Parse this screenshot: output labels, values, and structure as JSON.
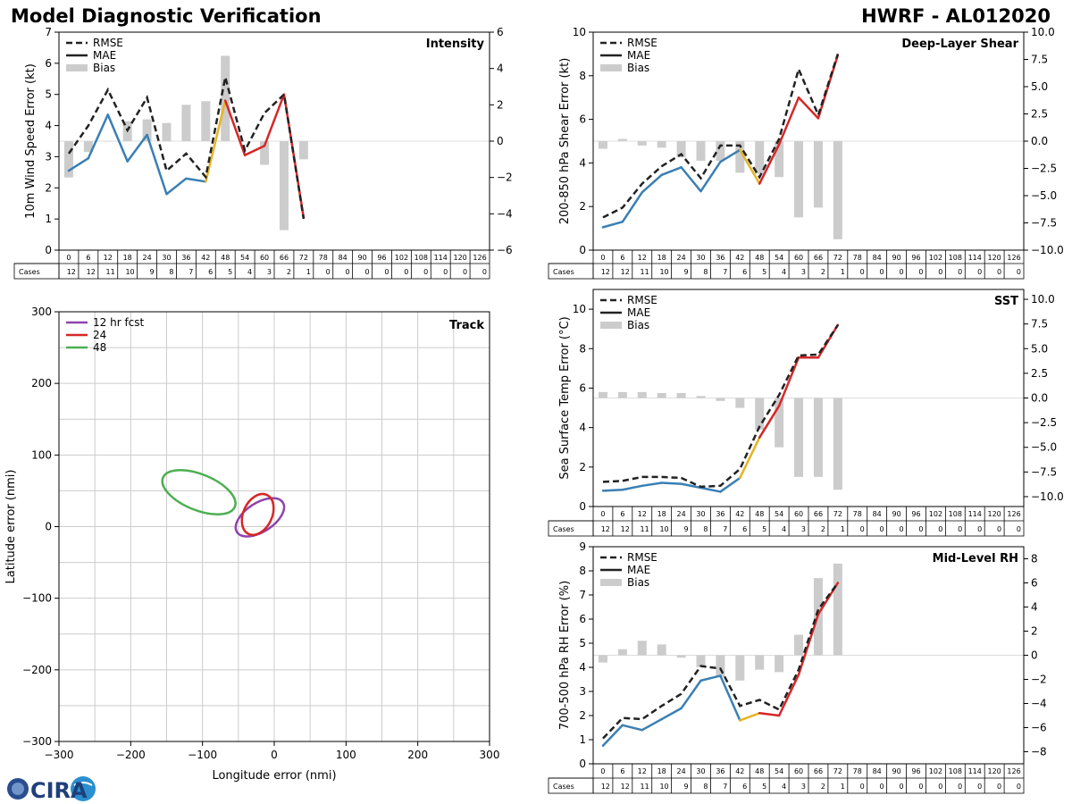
{
  "header": {
    "title": "Model Diagnostic Verification",
    "storm": "HWRF - AL012020"
  },
  "logo": {
    "text": "CIRA"
  },
  "colors": {
    "rmse": "#222222",
    "mae_early": "#3a7fb4",
    "mae_mid": "#e6b422",
    "mae_late": "#d62728",
    "bias": "#cccccc",
    "grid": "#cccccc",
    "track_12": "#8e44ad",
    "track_24": "#d62728",
    "track_48": "#4caf50"
  },
  "cases_table": {
    "label": "Cases",
    "hours": [
      "0",
      "6",
      "12",
      "18",
      "24",
      "30",
      "36",
      "42",
      "48",
      "54",
      "60",
      "66",
      "72",
      "78",
      "84",
      "90",
      "96",
      "102",
      "108",
      "114",
      "120",
      "126"
    ],
    "counts": [
      "12",
      "12",
      "11",
      "10",
      "9",
      "8",
      "7",
      "6",
      "5",
      "4",
      "3",
      "2",
      "1",
      "0",
      "0",
      "0",
      "0",
      "0",
      "0",
      "0",
      "0",
      "0"
    ]
  },
  "legend_labels": {
    "rmse": "RMSE",
    "mae": "MAE",
    "bias": "Bias"
  },
  "chart_data": [
    {
      "id": "intensity",
      "type": "line",
      "title": "Intensity",
      "ylabel": "10m Wind Speed Error (kt)",
      "ylim": [
        0,
        7
      ],
      "yticks": [
        0,
        1,
        2,
        3,
        4,
        5,
        6,
        7
      ],
      "y2lim": [
        -6,
        6
      ],
      "y2ticks": [
        -6,
        -4,
        -2,
        0,
        2,
        4,
        6
      ],
      "y2ticklabels": [
        "−6",
        "−4",
        "−2",
        "0",
        "2",
        "4",
        "6"
      ],
      "x": [
        0,
        6,
        12,
        18,
        24,
        30,
        36,
        42,
        48,
        54,
        60,
        66,
        72
      ],
      "rmse": [
        3.1,
        4.0,
        5.15,
        3.85,
        4.9,
        2.55,
        3.1,
        2.35,
        5.55,
        3.2,
        4.4,
        5.0,
        1.0
      ],
      "mae": [
        2.55,
        2.95,
        4.35,
        2.85,
        3.7,
        1.8,
        2.3,
        2.2,
        4.8,
        3.05,
        3.35,
        5.0,
        1.05
      ],
      "bias": [
        -2.0,
        -0.6,
        0.0,
        1.1,
        1.2,
        1.0,
        2.0,
        2.2,
        4.7,
        0.0,
        -1.3,
        -4.9,
        -1.0
      ]
    },
    {
      "id": "shear",
      "type": "line",
      "title": "Deep-Layer Shear",
      "ylabel": "200-850 hPa Shear Error (kt)",
      "ylim": [
        0,
        10
      ],
      "yticks": [
        0,
        2,
        4,
        6,
        8,
        10
      ],
      "y2lim": [
        -10,
        10
      ],
      "y2ticks": [
        -10,
        -7.5,
        -5,
        -2.5,
        0,
        2.5,
        5,
        7.5,
        10
      ],
      "y2ticklabels": [
        "−10.0",
        "−7.5",
        "−5.0",
        "−2.5",
        "0.0",
        "2.5",
        "5.0",
        "7.5",
        "10.0"
      ],
      "x": [
        0,
        6,
        12,
        18,
        24,
        30,
        36,
        42,
        48,
        54,
        60,
        66,
        72
      ],
      "rmse": [
        1.5,
        1.95,
        3.05,
        3.85,
        4.4,
        3.3,
        4.8,
        4.8,
        3.35,
        5.1,
        8.3,
        6.2,
        9.0
      ],
      "mae": [
        1.05,
        1.3,
        2.65,
        3.45,
        3.8,
        2.7,
        4.05,
        4.6,
        3.05,
        4.85,
        7.0,
        6.05,
        8.95
      ],
      "bias": [
        -0.7,
        0.2,
        -0.4,
        -0.6,
        -1.5,
        -1.8,
        -1.8,
        -2.9,
        -3.0,
        -3.3,
        -7.0,
        -6.1,
        -9.0
      ]
    },
    {
      "id": "sst",
      "type": "line",
      "title": "SST",
      "ylabel": "Sea Surface Temp Error (°C)",
      "ylim": [
        0,
        11
      ],
      "yticks": [
        0,
        2,
        4,
        6,
        8,
        10
      ],
      "y2lim": [
        -11,
        11
      ],
      "y2ticks": [
        -10,
        -7.5,
        -5,
        -2.5,
        0,
        2.5,
        5,
        7.5,
        10
      ],
      "y2ticklabels": [
        "−10.0",
        "−7.5",
        "−5.0",
        "−2.5",
        "0.0",
        "2.5",
        "5.0",
        "7.5",
        "10.0"
      ],
      "x": [
        0,
        6,
        12,
        18,
        24,
        30,
        36,
        42,
        48,
        54,
        60,
        66,
        72
      ],
      "rmse": [
        1.25,
        1.3,
        1.5,
        1.5,
        1.45,
        1.0,
        1.05,
        1.9,
        4.05,
        5.65,
        7.65,
        7.7,
        9.2
      ],
      "mae": [
        0.8,
        0.85,
        1.05,
        1.2,
        1.15,
        0.95,
        0.75,
        1.45,
        3.5,
        5.1,
        7.55,
        7.55,
        9.2
      ],
      "bias": [
        0.6,
        0.6,
        0.6,
        0.5,
        0.5,
        0.2,
        -0.3,
        -1.0,
        -3.2,
        -5.0,
        -8.0,
        -8.0,
        -9.3
      ]
    },
    {
      "id": "rh",
      "type": "line",
      "title": "Mid-Level RH",
      "ylabel": "700-500 hPa RH Error (%)",
      "ylim": [
        0,
        9
      ],
      "yticks": [
        0,
        1,
        2,
        3,
        4,
        5,
        6,
        7,
        8,
        9
      ],
      "y2lim": [
        -9,
        9
      ],
      "y2ticks": [
        -8,
        -6,
        -4,
        -2,
        0,
        2,
        4,
        6,
        8
      ],
      "y2ticklabels": [
        "−8",
        "−6",
        "−4",
        "−2",
        "0",
        "2",
        "4",
        "6",
        "8"
      ],
      "x": [
        0,
        6,
        12,
        18,
        24,
        30,
        36,
        42,
        48,
        54,
        60,
        66,
        72
      ],
      "rmse": [
        1.05,
        1.9,
        1.85,
        2.4,
        2.9,
        4.05,
        3.95,
        2.4,
        2.65,
        2.25,
        3.9,
        6.4,
        7.5
      ],
      "mae": [
        0.75,
        1.6,
        1.4,
        1.85,
        2.3,
        3.45,
        3.65,
        1.8,
        2.1,
        2.0,
        3.7,
        6.2,
        7.5
      ],
      "bias": [
        -0.6,
        0.5,
        1.2,
        0.9,
        -0.2,
        -1.0,
        -1.8,
        -2.1,
        -1.2,
        -1.4,
        1.7,
        6.4,
        7.6
      ]
    },
    {
      "id": "track",
      "type": "scatter",
      "title": "Track",
      "xlabel": "Longitude error (nmi)",
      "ylabel": "Latitude error (nmi)",
      "xlim": [
        -300,
        300
      ],
      "ylim": [
        -300,
        300
      ],
      "xticks": [
        -300,
        -200,
        -100,
        0,
        100,
        200,
        300
      ],
      "yticks": [
        -300,
        -200,
        -100,
        0,
        100,
        200,
        300
      ],
      "xticklabels": [
        "−300",
        "−200",
        "−100",
        "0",
        "100",
        "200",
        "300"
      ],
      "yticklabels": [
        "−300",
        "−200",
        "−100",
        "0",
        "100",
        "200",
        "300"
      ],
      "legend": [
        "12 hr fcst",
        "24",
        "48"
      ],
      "ellipses": [
        {
          "name": "12 hr fcst",
          "cx": -20,
          "cy": 13,
          "rx": 38,
          "ry": 20,
          "angle_deg": 33
        },
        {
          "name": "24",
          "cx": -23,
          "cy": 17,
          "rx": 30,
          "ry": 20,
          "angle_deg": 65
        },
        {
          "name": "48",
          "cx": -105,
          "cy": 48,
          "rx": 54,
          "ry": 25,
          "angle_deg": -22
        }
      ]
    }
  ]
}
